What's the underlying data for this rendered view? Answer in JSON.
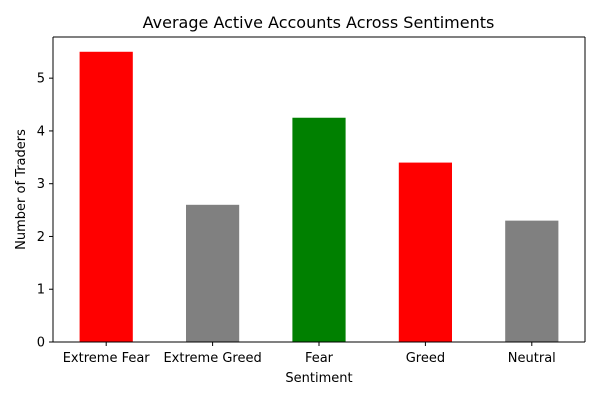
{
  "chart_data": {
    "type": "bar",
    "title": "Average Active Accounts Across Sentiments",
    "xlabel": "Sentiment",
    "ylabel": "Number of Traders",
    "categories": [
      "Extreme Fear",
      "Extreme Greed",
      "Fear",
      "Greed",
      "Neutral"
    ],
    "values": [
      5.5,
      2.6,
      4.25,
      3.4,
      2.3
    ],
    "bar_colors": [
      "#ff0000",
      "#808080",
      "#008000",
      "#ff0000",
      "#808080"
    ],
    "ylim": [
      0,
      5.78
    ],
    "yticks": [
      0,
      1,
      2,
      3,
      4,
      5
    ],
    "grid": false,
    "legend": "none"
  }
}
